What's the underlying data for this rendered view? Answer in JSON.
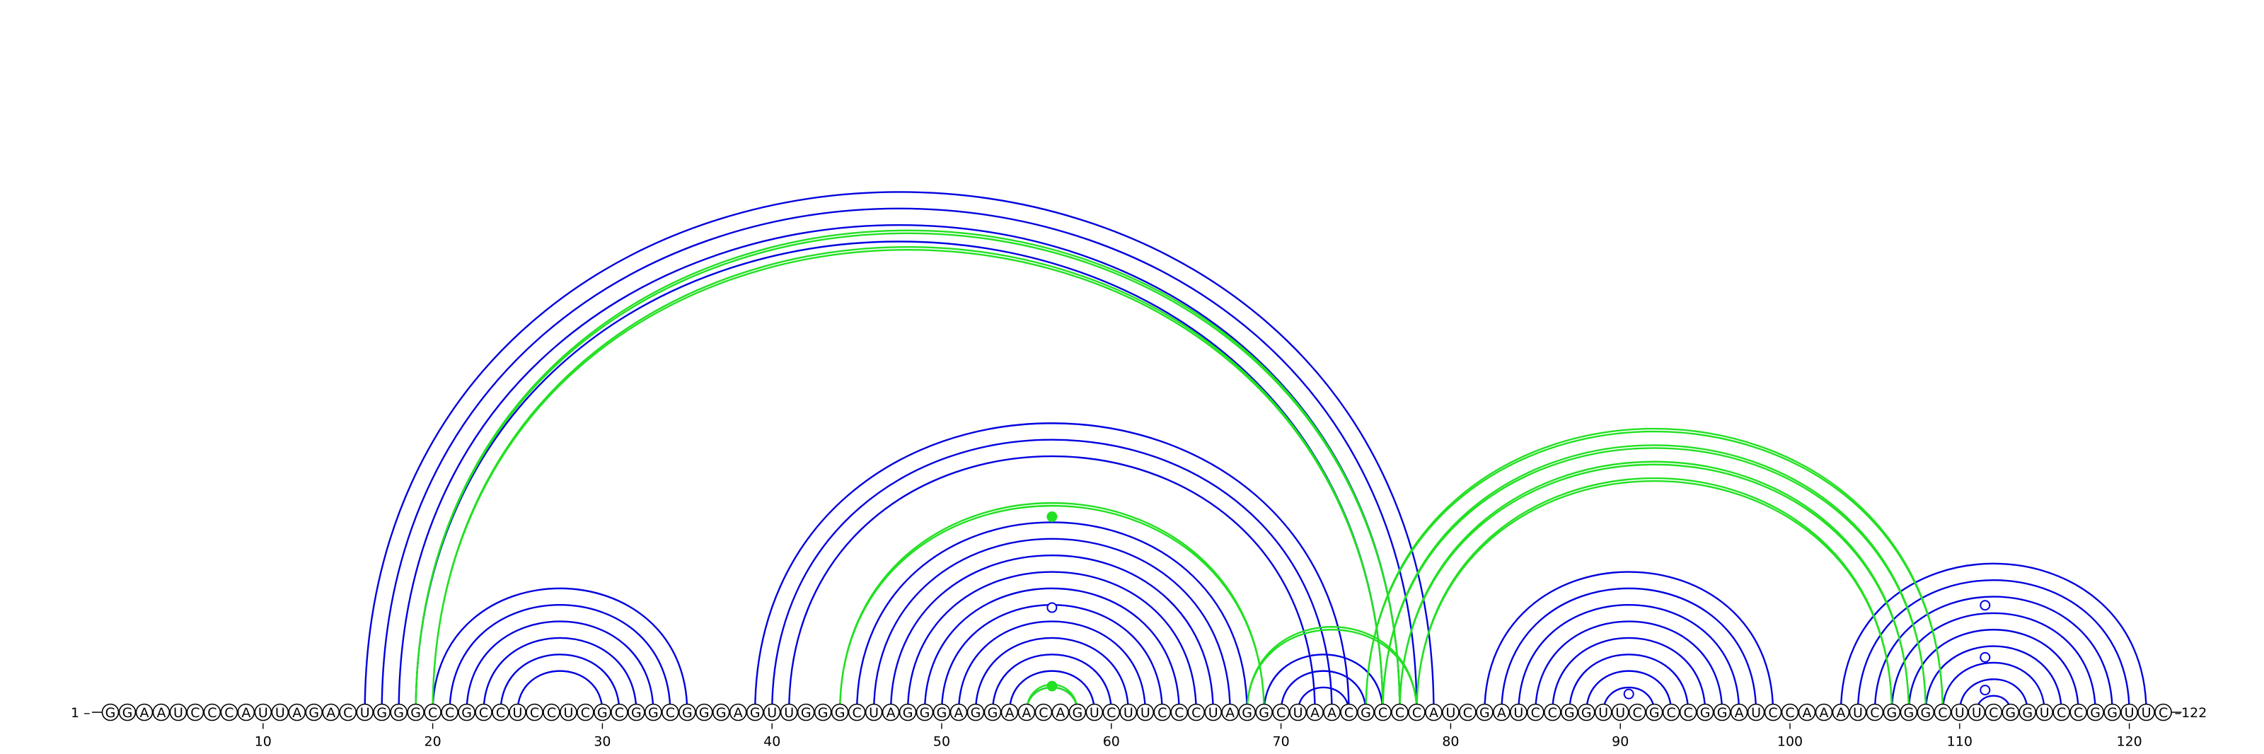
{
  "sequence": "GGAAUCCCAUUAGACUGGGCCGCCUCCUCGCGGCGGGAGUUGGGCUAGGGAGGAACAGUCUUCCCUAGGCUAACGCCCAUCGAUCCGGUUCGCCGGAUCCAAAUCGGGCUUCGGUCCGGUUC",
  "labels": {
    "start": "1 –",
    "end": "–122"
  },
  "ticks": [
    "10",
    "20",
    "30",
    "40",
    "50",
    "60",
    "70",
    "80",
    "90",
    "100",
    "110",
    "120"
  ],
  "colors": {
    "blue": "#0000e0",
    "green": "#22e022"
  },
  "chart_data": {
    "type": "arc-diagram",
    "length": 122,
    "tick_values": [
      10,
      20,
      30,
      40,
      50,
      60,
      70,
      80,
      90,
      100,
      110,
      120
    ],
    "pairs_blue": [
      [
        16,
        79
      ],
      [
        17,
        78
      ],
      [
        18,
        77
      ],
      [
        19,
        76
      ],
      [
        20,
        35
      ],
      [
        21,
        34
      ],
      [
        22,
        33
      ],
      [
        23,
        32
      ],
      [
        24,
        31
      ],
      [
        25,
        30
      ],
      [
        39,
        74
      ],
      [
        40,
        73
      ],
      [
        41,
        72
      ],
      [
        45,
        68
      ],
      [
        46,
        67
      ],
      [
        47,
        66
      ],
      [
        48,
        65
      ],
      [
        49,
        64
      ],
      [
        50,
        63
      ],
      [
        51,
        62
      ],
      [
        52,
        61
      ],
      [
        53,
        60
      ],
      [
        54,
        59
      ],
      [
        55,
        58
      ],
      [
        69,
        76
      ],
      [
        70,
        75
      ],
      [
        71,
        74
      ],
      [
        82,
        99
      ],
      [
        83,
        98
      ],
      [
        84,
        97
      ],
      [
        85,
        96
      ],
      [
        86,
        95
      ],
      [
        87,
        94
      ],
      [
        88,
        93
      ],
      [
        89,
        92
      ],
      [
        103,
        121
      ],
      [
        104,
        120
      ],
      [
        105,
        119
      ],
      [
        106,
        118
      ],
      [
        107,
        117
      ],
      [
        108,
        116
      ],
      [
        109,
        115
      ],
      [
        110,
        114
      ],
      [
        111,
        113
      ]
    ],
    "pairs_green": [
      [
        19,
        77
      ],
      [
        20,
        76
      ],
      [
        44,
        69
      ],
      [
        55,
        58
      ],
      [
        68,
        78
      ],
      [
        75,
        109
      ],
      [
        76,
        108
      ],
      [
        77,
        107
      ],
      [
        78,
        106
      ]
    ],
    "markers": [
      {
        "position": 56.5,
        "height": 0.94,
        "filled": true,
        "color": "green"
      },
      {
        "position": 56.5,
        "height": 0.5,
        "filled": false,
        "color": "blue"
      },
      {
        "position": 56.5,
        "height": 0.12,
        "filled": true,
        "color": "green"
      },
      {
        "position": 90.5,
        "height": 0.12,
        "filled": false,
        "color": "blue"
      },
      {
        "position": 111.5,
        "height": 0.71,
        "filled": false,
        "color": "blue"
      },
      {
        "position": 111.5,
        "height": 0.36,
        "filled": false,
        "color": "blue"
      },
      {
        "position": 111.5,
        "height": 0.14,
        "filled": false,
        "color": "blue"
      }
    ]
  }
}
